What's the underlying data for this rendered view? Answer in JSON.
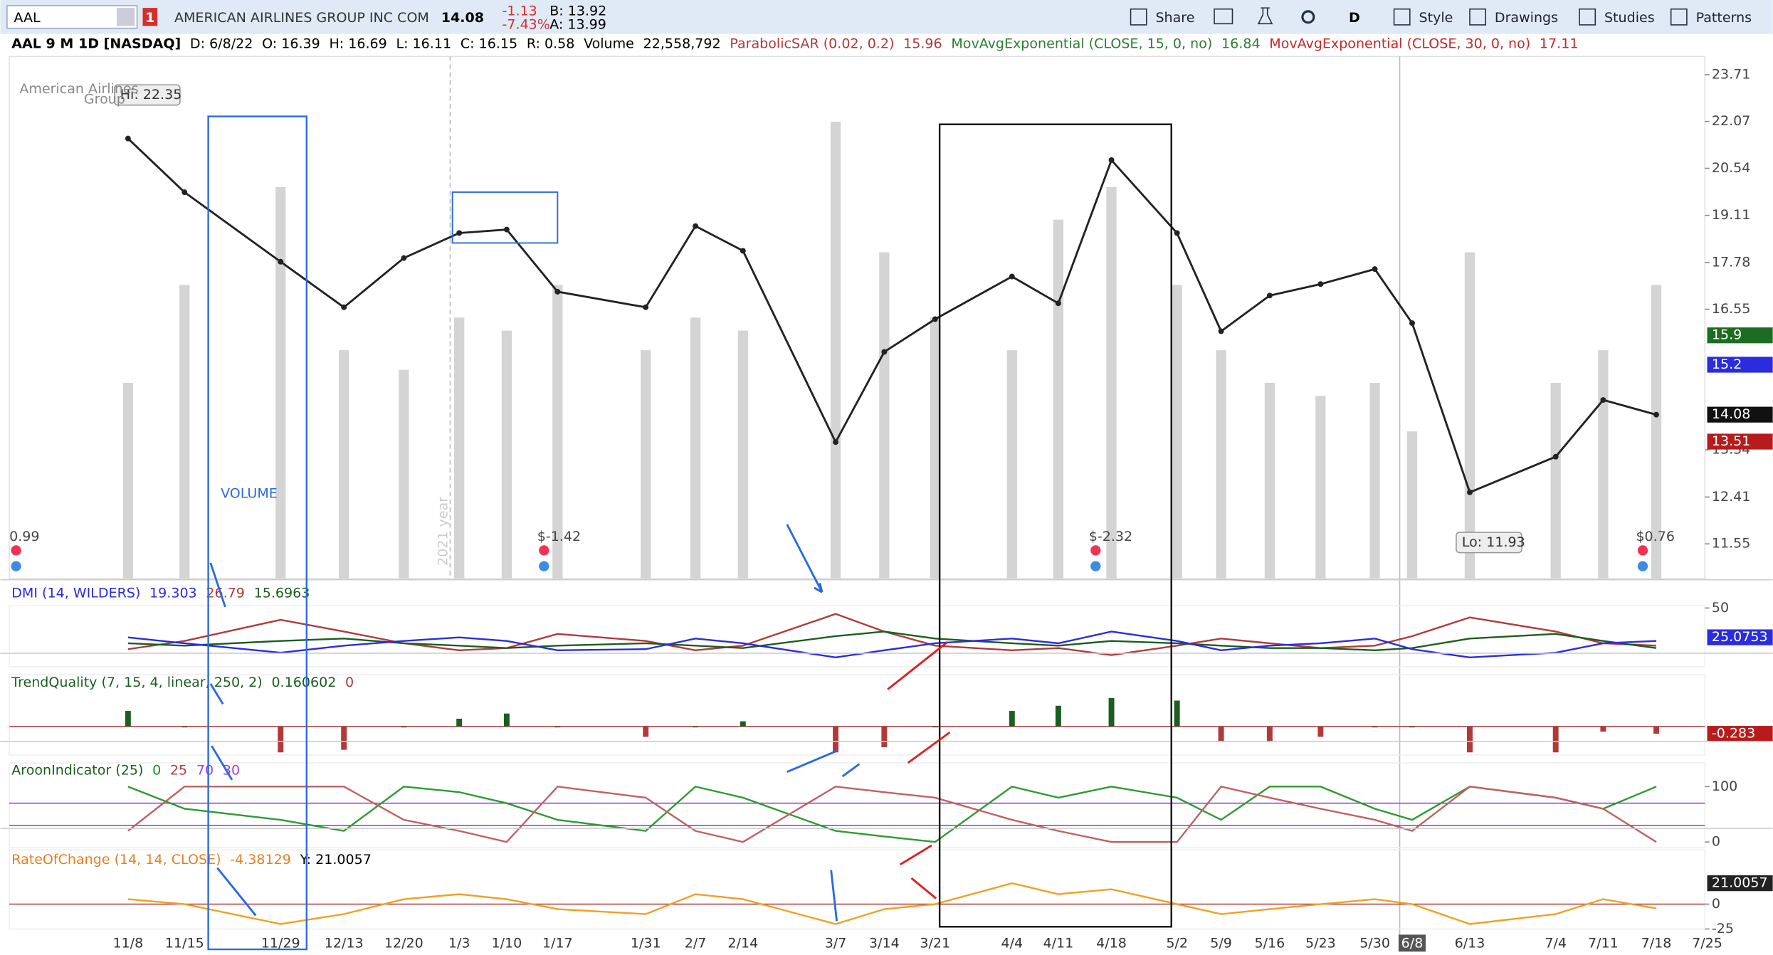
{
  "toolbar": {
    "symbol": "AAL",
    "alert_count": "1",
    "company": "AMERICAN AIRLINES GROUP INC COM",
    "last": "14.08",
    "change": "-1.13",
    "change_pct": "-7.43%",
    "bid": "B: 13.92",
    "ask": "A: 13.99",
    "aggregation": "D",
    "buttons": [
      "Share",
      "Style",
      "Drawings",
      "Studies",
      "Patterns"
    ]
  },
  "chart_data": [
    {
      "type": "line",
      "log_scale": true,
      "grid": false,
      "header": [
        {
          "text": "AAL 9 M 1D [NASDAQ]",
          "color": "#000000"
        },
        {
          "text": "D: 6/8/22",
          "color": "#000000"
        },
        {
          "text": "O: 16.39",
          "color": "#000000"
        },
        {
          "text": "H: 16.69",
          "color": "#000000"
        },
        {
          "text": "L: 16.11",
          "color": "#000000"
        },
        {
          "text": "C: 16.15",
          "color": "#000000"
        },
        {
          "text": "R: 0.58",
          "color": "#000000"
        },
        {
          "text": "Volume",
          "color": "#000000"
        },
        {
          "text": "22,558,792",
          "color": "#000000"
        },
        {
          "text": "ParabolicSAR (0.02, 0.2)",
          "color": "#b03a3a"
        },
        {
          "text": "15.96",
          "color": "#b03a3a"
        },
        {
          "text": "MovAvgExponential (CLOSE, 15, 0, no)",
          "color": "#2e7d32"
        },
        {
          "text": "16.84",
          "color": "#2e7d32"
        },
        {
          "text": "MovAvgExponential (CLOSE, 30, 0, no)",
          "color": "#c62828"
        },
        {
          "text": "17.11",
          "color": "#c62828"
        }
      ],
      "x": [
        "11/8",
        "11/15",
        "11/29",
        "12/13",
        "12/20",
        "1/3",
        "1/10",
        "1/17",
        "1/31",
        "2/7",
        "2/14",
        "3/7",
        "3/14",
        "3/21",
        "4/4",
        "4/11",
        "4/18",
        "5/2",
        "5/9",
        "5/16",
        "5/23",
        "5/30",
        "6/8",
        "6/13",
        "7/4",
        "7/11",
        "7/18",
        "7/25"
      ],
      "highlight_x": "6/8",
      "series": [
        {
          "type": "bar",
          "axis": "y2",
          "color": "#d4d4d4",
          "values": [
            30000000,
            45000000,
            60000000,
            35000000,
            32000000,
            40000000,
            38000000,
            45000000,
            35000000,
            40000000,
            38000000,
            70000000,
            50000000,
            40000000,
            35000000,
            55000000,
            60000000,
            45000000,
            35000000,
            30000000,
            28000000,
            30000000,
            22558792,
            50000000,
            30000000,
            35000000,
            45000000,
            null
          ]
        },
        {
          "type": "line",
          "color": "#222222",
          "values": [
            21.5,
            19.8,
            17.8,
            16.6,
            17.9,
            18.6,
            18.7,
            17.0,
            16.6,
            18.8,
            18.1,
            13.5,
            15.5,
            16.3,
            17.4,
            16.7,
            20.8,
            18.6,
            16.0,
            16.9,
            17.2,
            17.6,
            16.2,
            12.5,
            13.2,
            14.4,
            14.08,
            null
          ]
        }
      ],
      "ylim": [
        10.95,
        24.38
      ],
      "yticks": [
        11.55,
        12.41,
        13.34,
        16.55,
        17.78,
        19.11,
        20.54,
        22.07,
        23.71
      ],
      "y2lim": [
        0,
        80000000
      ],
      "badges": [
        {
          "value": 15.9,
          "color": "#1b6e20"
        },
        {
          "value": 15.2,
          "color": "#2b2be0"
        },
        {
          "value": 14.08,
          "color": "#111111"
        },
        {
          "value": 13.51,
          "color": "#b71c1c"
        }
      ],
      "annotations": [
        "Hi: 22.35",
        "Lo: 11.93",
        "VOLUME"
      ],
      "events": [
        "0.99",
        "$-1.42",
        "$-2.32",
        "$0.76"
      ],
      "logo": "American Airlines",
      "logo_sub": "Group",
      "year_marker": "2021 year"
    },
    {
      "type": "line",
      "grid": false,
      "header": [
        {
          "text": "DMI (14, WILDERS)",
          "color": "#2b2be0"
        },
        {
          "text": "19.303",
          "color": "#2b2be0"
        },
        {
          "text": "26.79",
          "color": "#b03a3a"
        },
        {
          "text": "15.6963",
          "color": "#1b5e20"
        }
      ],
      "series": [
        {
          "color": "#b03a3a",
          "values": [
            15,
            22,
            40,
            30,
            20,
            14,
            16,
            28,
            22,
            14,
            18,
            45,
            30,
            18,
            14,
            16,
            10,
            18,
            24,
            20,
            16,
            18,
            26,
            42,
            30,
            20,
            18,
            null
          ]
        },
        {
          "color": "#1b5e20",
          "values": [
            20,
            18,
            22,
            24,
            20,
            18,
            16,
            18,
            20,
            18,
            16,
            26,
            30,
            24,
            20,
            18,
            22,
            20,
            18,
            16,
            16,
            14,
            16,
            24,
            28,
            22,
            16,
            null
          ]
        },
        {
          "color": "#2b2be0",
          "values": [
            25,
            20,
            12,
            18,
            22,
            25,
            22,
            14,
            15,
            24,
            20,
            8,
            14,
            20,
            24,
            20,
            30,
            22,
            14,
            18,
            20,
            24,
            15,
            8,
            12,
            20,
            22,
            null
          ]
        }
      ],
      "ylim": [
        0,
        51.9
      ],
      "yticks": [
        50
      ],
      "badges": [
        {
          "value": 25.0753,
          "color": "#2b2be0"
        }
      ]
    },
    {
      "type": "bar",
      "grid": false,
      "header": [
        {
          "text": "TrendQuality (7, 15, 4, linear, 250, 2)",
          "color": "#1b5e20"
        },
        {
          "text": "0.160602",
          "color": "#1b5e20"
        },
        {
          "text": "0",
          "color": "#b03a3a"
        }
      ],
      "series": [
        {
          "color": "#1b5e20",
          "negative_color": "#b03a3a",
          "values": [
            0.6,
            0,
            -1.0,
            -0.9,
            0,
            0.3,
            0.5,
            0,
            -0.4,
            0,
            0.2,
            -1.0,
            -0.8,
            0,
            0.6,
            0.8,
            1.1,
            1.0,
            -0.6,
            -0.6,
            -0.4,
            0,
            0,
            -1.0,
            -1.0,
            -0.2,
            -0.28,
            null
          ]
        }
      ],
      "ylim": [
        -1.1,
        2
      ],
      "yticks": [],
      "reference_lines": [
        {
          "value": 0,
          "color": "#b03a3a"
        }
      ],
      "badges": [
        {
          "value": -0.283,
          "color": "#b71c1c"
        }
      ]
    },
    {
      "type": "line",
      "grid": false,
      "header": [
        {
          "text": "AroonIndicator (25)",
          "color": "#1b5e20"
        },
        {
          "text": "0",
          "color": "#1b8e20"
        },
        {
          "text": "25",
          "color": "#b03a3a"
        }
      ],
      "series": [
        {
          "color": "#2e9a32",
          "values": [
            100,
            60,
            40,
            20,
            100,
            90,
            70,
            40,
            20,
            100,
            80,
            20,
            10,
            0,
            100,
            80,
            100,
            80,
            40,
            100,
            100,
            60,
            40,
            100,
            80,
            60,
            100,
            null
          ]
        },
        {
          "color": "#c06060",
          "values": [
            20,
            100,
            100,
            100,
            40,
            20,
            0,
            100,
            80,
            20,
            0,
            100,
            90,
            80,
            40,
            20,
            0,
            0,
            100,
            80,
            60,
            40,
            20,
            100,
            80,
            60,
            0,
            null
          ]
        }
      ],
      "ylim": [
        -10.2,
        142.9
      ],
      "yticks": [
        0,
        100
      ],
      "reference_lines": [
        {
          "value": 70,
          "color": "#a040e0"
        },
        {
          "value": 30,
          "color": "#a040e0"
        }
      ],
      "badges": []
    },
    {
      "type": "line",
      "grid": false,
      "header": [
        {
          "text": "RateOfChange (14, 14, CLOSE)",
          "color": "#e67e22"
        },
        {
          "text": "-4.38129",
          "color": "#e67e22"
        },
        {
          "text": "Y: 21.0057",
          "color": "#000000"
        }
      ],
      "series": [
        {
          "color": "#f0a020",
          "values": [
            5,
            0,
            -20,
            -10,
            5,
            10,
            5,
            -5,
            -10,
            10,
            5,
            -20,
            -5,
            0,
            21,
            10,
            15,
            0,
            -10,
            -5,
            0,
            5,
            0,
            -20,
            -10,
            5,
            -4.38,
            null
          ]
        }
      ],
      "ylim": [
        -25,
        54.5
      ],
      "yticks": [
        -25,
        0
      ],
      "reference_lines": [
        {
          "value": 0,
          "color": "#b03a3a"
        }
      ],
      "badges": [
        {
          "value": 21.0057,
          "color": "#222222"
        }
      ]
    }
  ]
}
